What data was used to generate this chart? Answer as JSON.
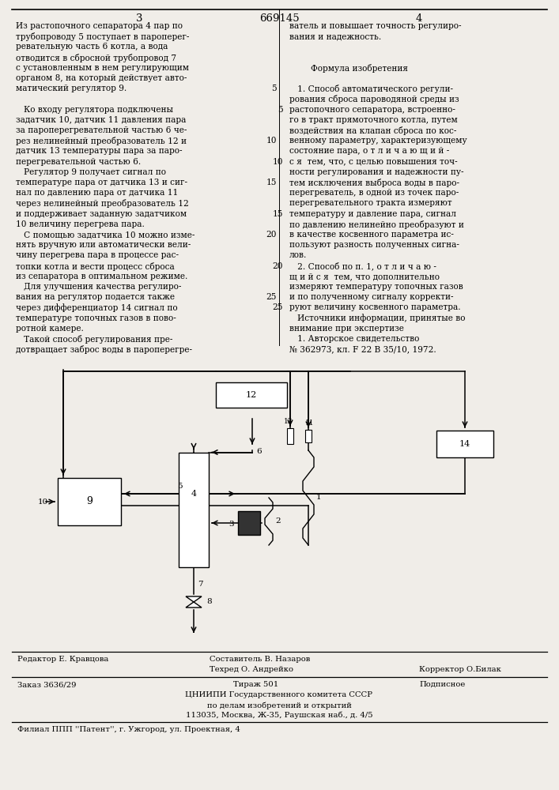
{
  "bg_color": "#f0ede8",
  "title_center": "669145",
  "page_left": "3",
  "page_right": "4",
  "left_col_text": [
    "Из растопочного сепаратора 4 пар по",
    "трубопроводу 5 поступает в пароперег-",
    "ревательную часть 6 котла, а вода",
    "отводится в сбросной трубопровод 7",
    "с установленным в нем регулирующим",
    "органом 8, на который действует авто-",
    "матический регулятор 9.",
    "",
    "   Ко входу регулятора подключены",
    "задатчик 10, датчик 11 давления пара",
    "за пароперегревательной частью 6 че-",
    "рез нелинейный преобразователь 12 и",
    "датчик 13 температуры пара за паро-",
    "перегревательной частью 6.",
    "   Регулятор 9 получает сигнал по",
    "температуре пара от датчика 13 и сиг-",
    "нал по давлению пара от датчика 11",
    "через нелинейный преобразователь 12",
    "и поддерживает заданную задатчиком",
    "10 величину перегрева пара.",
    "   С помощью задатчика 10 можно изме-",
    "нять вручную или автоматически вели-",
    "чину перегрева пара в процессе рас-",
    "топки котла и вести процесс сброса",
    "из сепаратора в оптимальном режиме.",
    "   Для улучшения качества регулиро-",
    "вания на регулятор подается также",
    "через дифференциатор 14 сигнал по",
    "температуре топочных газов в пово-",
    "ротной камере.",
    "   Такой способ регулирования пре-",
    "дотвращает заброс воды в пароперегре-"
  ],
  "right_col_text": [
    "ватель и повышает точность регулиро-",
    "вания и надежность.",
    "",
    "",
    "        Формула изобретения",
    "",
    "   1. Способ автоматического регули-",
    "рования сброса пароводяной среды из",
    "растопочного сепаратора, встроенно-",
    "го в тракт прямоточного котла, путем",
    "воздействия на клапан сброса по кос-",
    "венному параметру, характеризующему",
    "состояние пара, о т л и ч а ю щ и й -",
    "с я  тем, что, с целью повышения точ-",
    "ности регулирования и надежности пу-",
    "тем исключения выброса воды в паро-",
    "перегреватель, в одной из точек паро-",
    "перегревательного тракта измеряют",
    "температуру и давление пара, сигнал",
    "по давлению нелинейно преобразуют и",
    "в качестве косвенного параметра ис-",
    "пользуют разность полученных сигна-",
    "лов.",
    "   2. Способ по п. 1, о т л и ч а ю -",
    "щ и й с я  тем, что дополнительно",
    "измеряют температуру топочных газов",
    "и по полученному сигналу корректи-",
    "руют величину косвенного параметра.",
    "   Источники информации, принятые во",
    "внимание при экспертизе",
    "   1. Авторское свидетельство",
    "№ 362973, кл. F 22 В 35/10, 1972."
  ],
  "left_line_numbers": {
    "6": "5",
    "11": "10",
    "15": "15",
    "20": "20",
    "26": "25"
  },
  "right_line_numbers": {
    "8": "5",
    "13": "10",
    "18": "15",
    "23": "20",
    "27": "25"
  },
  "footer_line1_left": "Редактор Е. Кравцова",
  "footer_line1_center": "Составитель В. Назаров",
  "footer_line2_center": "Техред О. Андрейко",
  "footer_line2_right": "Корректор О.Билак",
  "footer_line3_left": "Заказ 3636/29",
  "footer_line3_center": "Тираж 501",
  "footer_line3_right": "Подписное",
  "footer_line4": "ЦНИИПИ Государственного комитета СССР",
  "footer_line5": "по делам изобретений и открытий",
  "footer_line6": "113035, Москва, Ж-35, Раушская наб., д. 4/5",
  "footer_line7": "Филиал ППП ''Патент'', г. Ужгород, ул. Проектная, 4"
}
